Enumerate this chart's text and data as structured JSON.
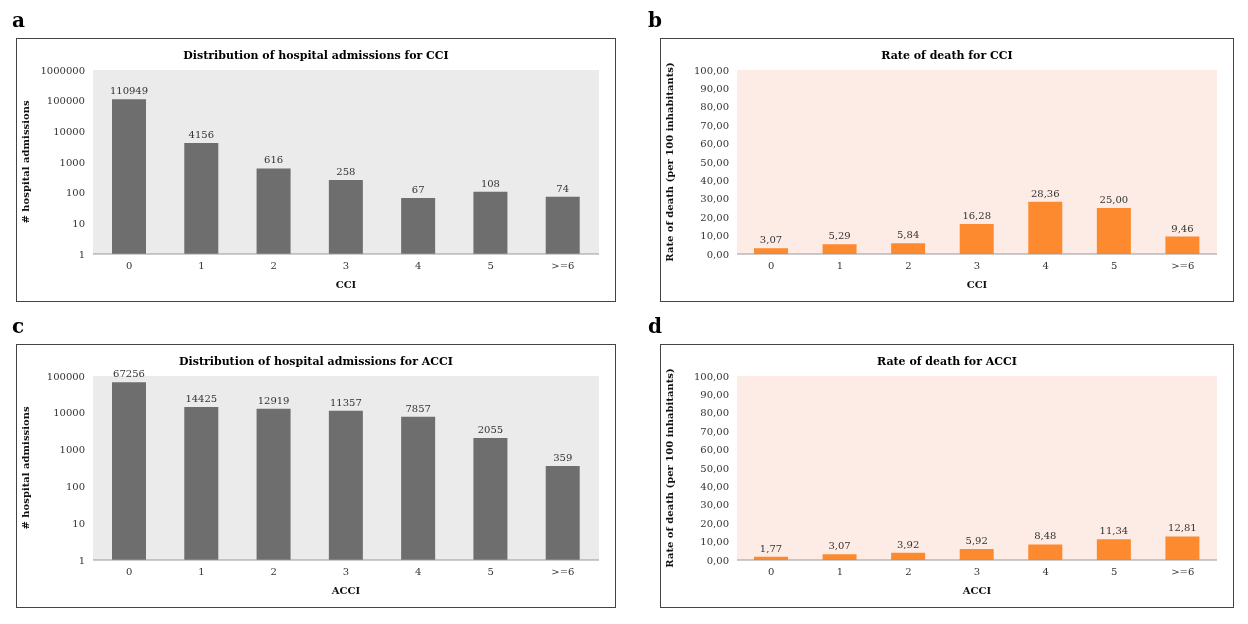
{
  "chart_data": [
    {
      "type": "bar",
      "title": "Distribution of hospital admissions for CCI",
      "xlabel": "CCI",
      "ylabel": "# hospital admissions",
      "annotations": [
        "a"
      ],
      "categories": [
        "0",
        "1",
        "2",
        "3",
        "4",
        "5",
        ">=6"
      ],
      "values": [
        110949,
        4156,
        616,
        258,
        67,
        108,
        74
      ],
      "color": "#6e6e6e",
      "log": true,
      "ylim": [
        1,
        1000000
      ],
      "yticks": [
        1,
        10,
        100,
        1000,
        10000,
        100000,
        1000000
      ],
      "data_labels": true,
      "grid": false,
      "legend": false
    },
    {
      "type": "bar",
      "title": "Rate of death for CCI",
      "xlabel": "CCI",
      "ylabel": "Rate of death (per 100 inhabitants)",
      "annotations": [
        "b"
      ],
      "categories": [
        "0",
        "1",
        "2",
        "3",
        "4",
        "5",
        ">=6"
      ],
      "values": [
        3.07,
        5.29,
        5.84,
        16.28,
        28.36,
        25.0,
        9.46
      ],
      "value_labels": [
        "3,07",
        "5,29",
        "5,84",
        "16,28",
        "28,36",
        "25,00",
        "9,46"
      ],
      "color": "#fd8a2e",
      "ylim": [
        0,
        100
      ],
      "yticks": [
        {
          "value": 0,
          "label": "0,00"
        },
        {
          "value": 10,
          "label": "10,00"
        },
        {
          "value": 20,
          "label": "20,00"
        },
        {
          "value": 30,
          "label": "30,00"
        },
        {
          "value": 40,
          "label": "40,00"
        },
        {
          "value": 50,
          "label": "50,00"
        },
        {
          "value": 60,
          "label": "60,00"
        },
        {
          "value": 70,
          "label": "70,00"
        },
        {
          "value": 80,
          "label": "80,00"
        },
        {
          "value": 90,
          "label": "90,00"
        },
        {
          "value": 100,
          "label": "100,00"
        }
      ],
      "grid": false,
      "legend": false
    },
    {
      "type": "bar",
      "title": "Distribution of hospital admissions for ACCI",
      "xlabel": "ACCI",
      "ylabel": "# hospital admissions",
      "annotations": [
        "c"
      ],
      "categories": [
        "0",
        "1",
        "2",
        "3",
        "4",
        "5",
        ">=6"
      ],
      "values": [
        67256,
        14425,
        12919,
        11357,
        7857,
        2055,
        359
      ],
      "color": "#6e6e6e",
      "log": true,
      "ylim": [
        1,
        100000
      ],
      "yticks": [
        1,
        10,
        100,
        1000,
        10000,
        100000
      ],
      "data_labels": true,
      "grid": false,
      "legend": false
    },
    {
      "type": "bar",
      "title": "Rate of death for ACCI",
      "xlabel": "ACCI",
      "ylabel": "Rate of death (per 100 inhabitants)",
      "annotations": [
        "d"
      ],
      "categories": [
        "0",
        "1",
        "2",
        "3",
        "4",
        "5",
        ">=6"
      ],
      "values": [
        1.77,
        3.07,
        3.92,
        5.92,
        8.48,
        11.34,
        12.81
      ],
      "value_labels": [
        "1,77",
        "3,07",
        "3,92",
        "5,92",
        "8,48",
        "11,34",
        "12,81"
      ],
      "color": "#fd8a2e",
      "ylim": [
        0,
        100
      ],
      "yticks": [
        {
          "value": 0,
          "label": "0,00"
        },
        {
          "value": 10,
          "label": "10,00"
        },
        {
          "value": 20,
          "label": "20,00"
        },
        {
          "value": 30,
          "label": "30,00"
        },
        {
          "value": 40,
          "label": "40,00"
        },
        {
          "value": 50,
          "label": "50,00"
        },
        {
          "value": 60,
          "label": "60,00"
        },
        {
          "value": 70,
          "label": "70,00"
        },
        {
          "value": 80,
          "label": "80,00"
        },
        {
          "value": 90,
          "label": "90,00"
        },
        {
          "value": 100,
          "label": "100,00"
        }
      ],
      "grid": false,
      "legend": false
    }
  ]
}
